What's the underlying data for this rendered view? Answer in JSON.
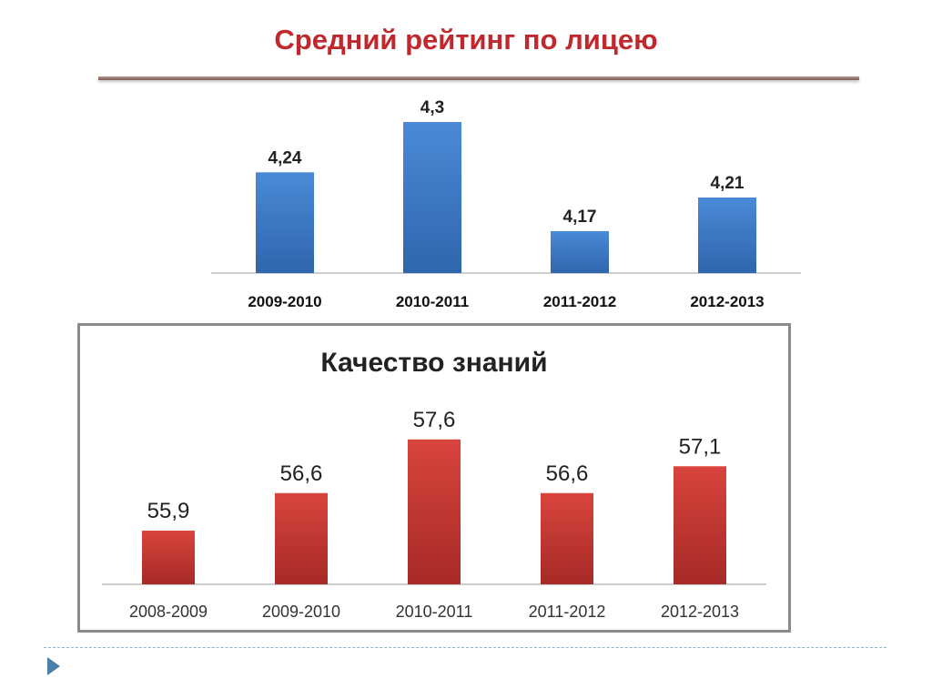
{
  "slide": {
    "title": "Средний рейтинг по лицею"
  },
  "colors": {
    "title": "#c0282d",
    "rating_bar": "#3f7cc6",
    "quality_bar": "#cf3b35",
    "nav_arrow": "#4a7fa8"
  },
  "icons": {
    "nav": "play-triangle-icon"
  },
  "chart_data": [
    {
      "type": "bar",
      "title": "",
      "categories": [
        "2009-2010",
        "2010-2011",
        "2011-2012",
        "2012-2013"
      ],
      "values": [
        4.24,
        4.3,
        4.17,
        4.21
      ],
      "value_labels": [
        "4,24",
        "4,3",
        "4,17",
        "4,21"
      ],
      "ylim": [
        4.12,
        4.3
      ],
      "grid": false,
      "xlabel": "",
      "ylabel": ""
    },
    {
      "type": "bar",
      "title": "Качество знаний",
      "categories": [
        "2008-2009",
        "2009-2010",
        "2010-2011",
        "2011-2012",
        "2012-2013"
      ],
      "values": [
        55.9,
        56.6,
        57.6,
        56.6,
        57.1
      ],
      "value_labels": [
        "55,9",
        "56,6",
        "57,6",
        "56,6",
        "57,1"
      ],
      "ylim": [
        54.9,
        57.8
      ],
      "grid": false,
      "xlabel": "",
      "ylabel": ""
    }
  ]
}
